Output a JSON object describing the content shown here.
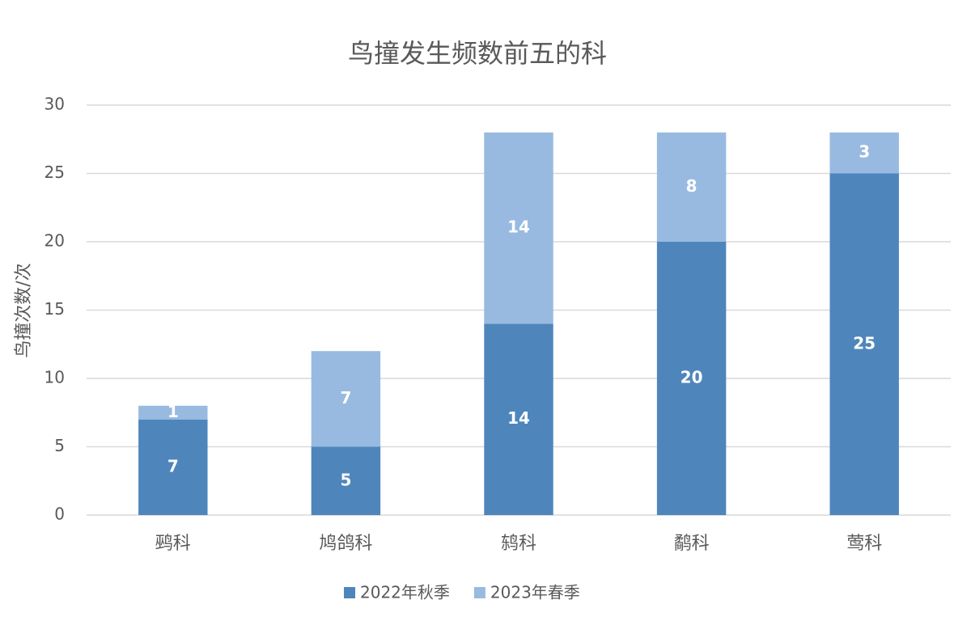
{
  "chart_data": {
    "type": "stacked_bar",
    "title": "鸟撞发生频数前五的科",
    "y_label": "鸟撞次数/次",
    "categories": [
      "鹀科",
      "鸠鸽科",
      "鸫科",
      "鹬科",
      "莺科"
    ],
    "series": [
      {
        "name": "2022年秋季",
        "color": "#4e86bc",
        "values": [
          7,
          5,
          14,
          20,
          25
        ]
      },
      {
        "name": "2023年春季",
        "color": "#98bae0",
        "values": [
          1,
          7,
          14,
          8,
          3
        ]
      }
    ],
    "ylim": [
      0,
      30
    ],
    "yticks": [
      0,
      5,
      10,
      15,
      20,
      25,
      30
    ],
    "grid": true
  }
}
